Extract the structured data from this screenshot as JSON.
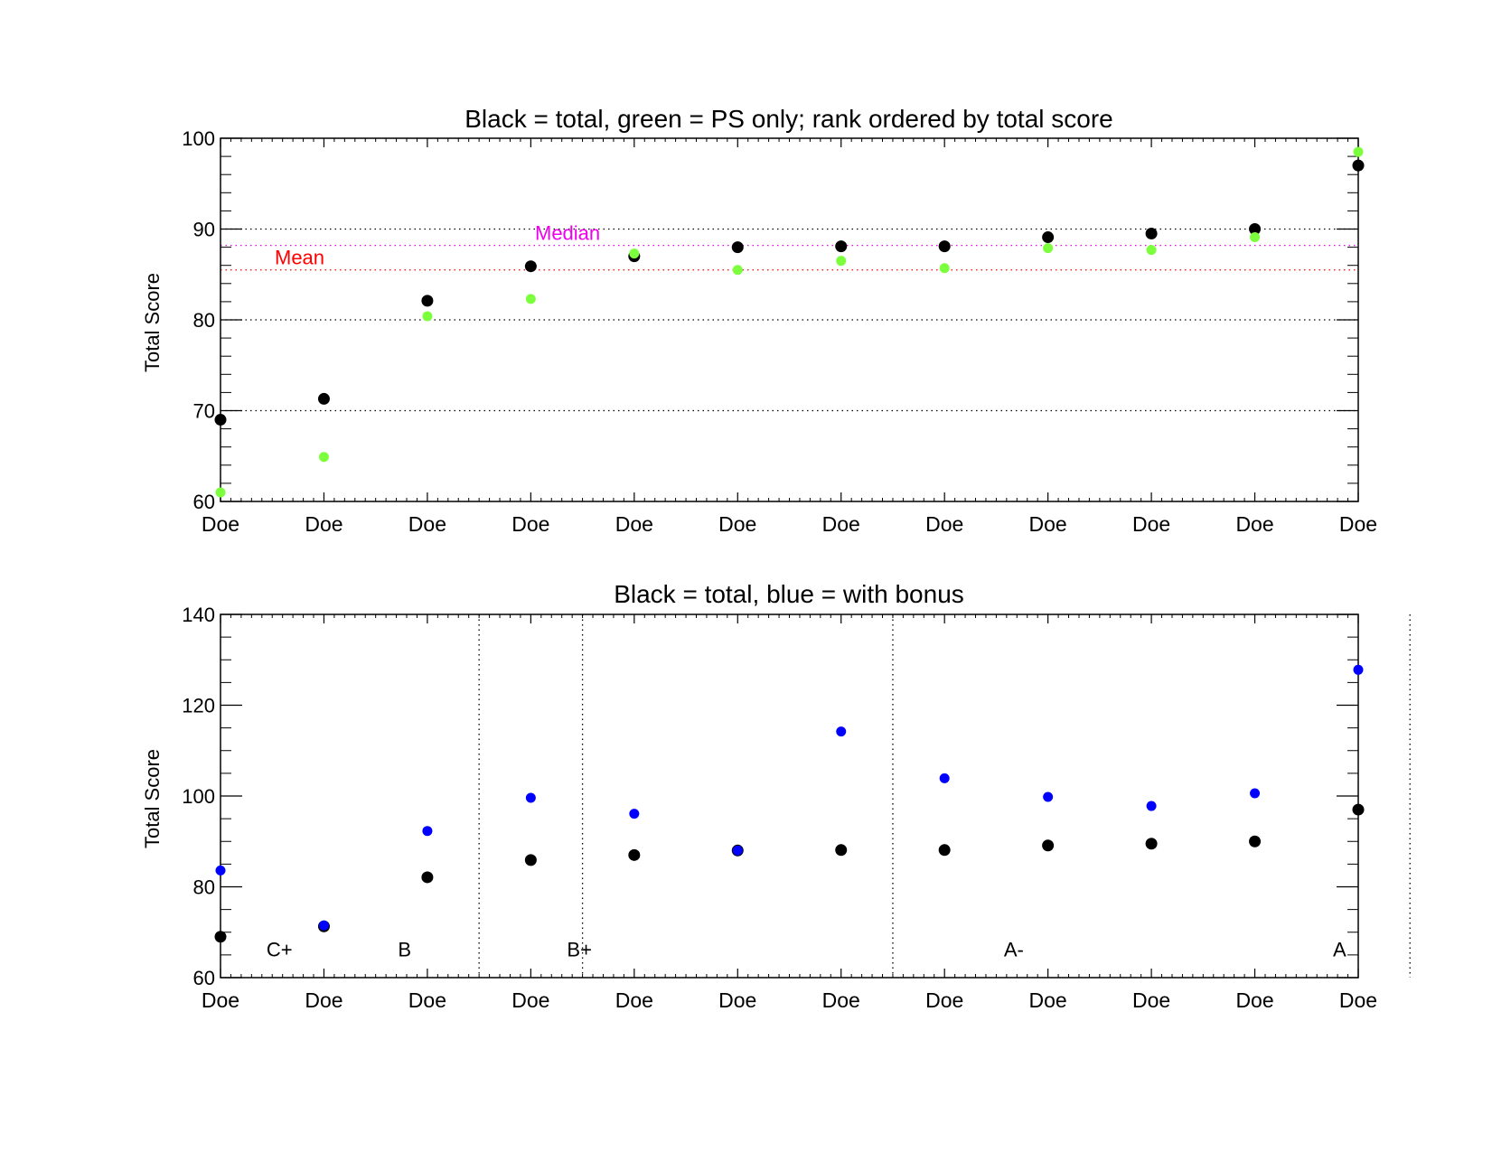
{
  "colors": {
    "total": "#000000",
    "ps_only": "#7cff3c",
    "bonus": "#0000ff",
    "mean": "#ff0000",
    "median": "#ee00ee",
    "grid": "#000000",
    "background": "#ffffff"
  },
  "chart_data": [
    {
      "type": "scatter",
      "title": "Black = total, green = PS only; rank ordered by total score",
      "ylabel": "Total Score",
      "xlabel": "",
      "categories": [
        "Doe",
        "Doe",
        "Doe",
        "Doe",
        "Doe",
        "Doe",
        "Doe",
        "Doe",
        "Doe",
        "Doe",
        "Doe",
        "Doe"
      ],
      "ylim": [
        60,
        100
      ],
      "yticks": [
        60,
        70,
        80,
        90,
        100
      ],
      "grid": "dotted at 70, 80, 90",
      "series": [
        {
          "color": "black",
          "values": [
            69.0,
            71.3,
            82.1,
            85.9,
            87.0,
            88.0,
            88.1,
            88.1,
            89.1,
            89.5,
            90.0,
            97.0
          ]
        },
        {
          "color": "green",
          "values": [
            61.0,
            64.9,
            80.4,
            82.3,
            87.3,
            85.5,
            86.5,
            85.7,
            87.9,
            87.7,
            89.1,
            98.5
          ]
        }
      ],
      "reference_lines": [
        {
          "label": "Mean",
          "value": 85.5,
          "color": "red"
        },
        {
          "label": "Median",
          "value": 88.2,
          "color": "magenta"
        }
      ]
    },
    {
      "type": "scatter",
      "title": "Black = total, blue = with bonus",
      "ylabel": "Total Score",
      "xlabel": "",
      "categories": [
        "Doe",
        "Doe",
        "Doe",
        "Doe",
        "Doe",
        "Doe",
        "Doe",
        "Doe",
        "Doe",
        "Doe",
        "Doe",
        "Doe"
      ],
      "ylim": [
        60,
        140
      ],
      "yticks": [
        60,
        80,
        100,
        120,
        140
      ],
      "series": [
        {
          "color": "black",
          "values": [
            69.0,
            71.3,
            82.1,
            85.9,
            87.0,
            88.0,
            88.1,
            88.1,
            89.1,
            89.5,
            90.0,
            97.0
          ]
        },
        {
          "color": "blue",
          "values": [
            83.6,
            71.5,
            92.3,
            99.6,
            96.1,
            88.0,
            114.2,
            103.9,
            99.8,
            97.8,
            100.6,
            127.8
          ]
        }
      ],
      "grade_boundaries": [
        2.5,
        3.5,
        6.5,
        11.5
      ],
      "grade_labels": [
        {
          "label": "C+",
          "x": 0.57
        },
        {
          "label": "B",
          "x": 1.78
        },
        {
          "label": "B+",
          "x": 3.47
        },
        {
          "label": "A-",
          "x": 7.67
        },
        {
          "label": "A",
          "x": 10.82
        }
      ]
    }
  ]
}
